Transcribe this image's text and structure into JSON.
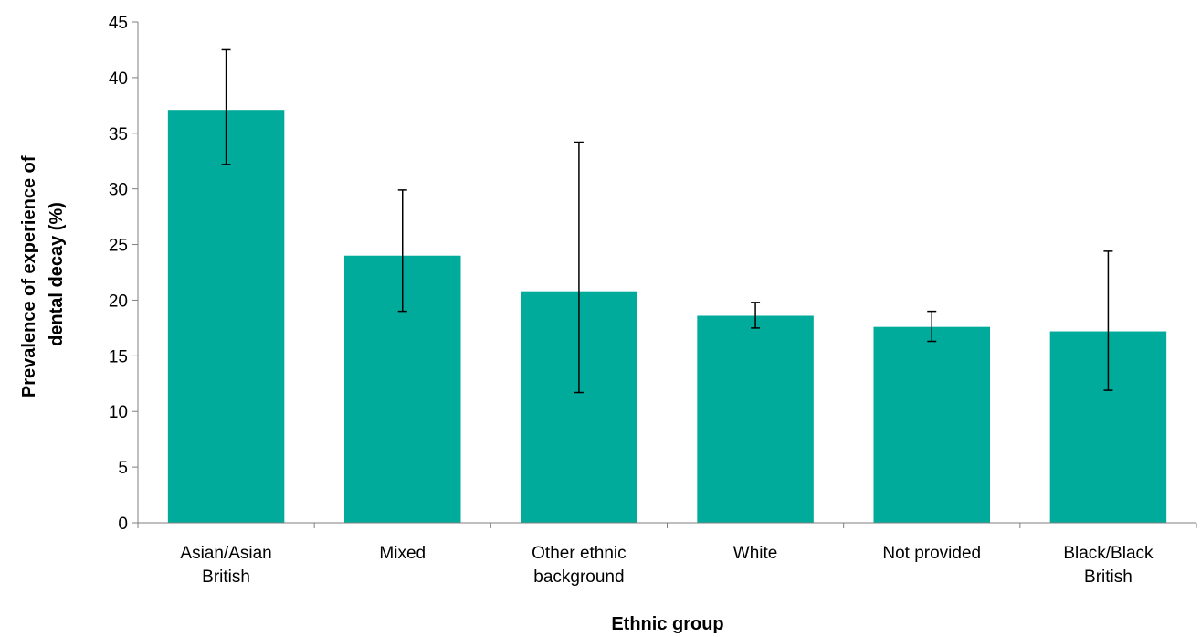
{
  "chart_data": {
    "type": "bar",
    "title": "",
    "xlabel": "Ethnic group",
    "ylabel_lines": [
      "Prevalence of experience of",
      "dental decay (%)"
    ],
    "categories": [
      [
        "Asian/Asian",
        "British"
      ],
      [
        "Mixed"
      ],
      [
        "Other ethnic",
        "background"
      ],
      [
        "White"
      ],
      [
        "Not provided"
      ],
      [
        "Black/Black",
        "British"
      ]
    ],
    "values": [
      37.1,
      24.0,
      20.8,
      18.6,
      17.6,
      17.2
    ],
    "error_low": [
      32.2,
      19.0,
      11.7,
      17.5,
      16.3,
      11.9
    ],
    "error_high": [
      42.5,
      29.9,
      34.2,
      19.8,
      19.0,
      24.4
    ],
    "ylim": [
      0,
      45
    ],
    "yticks": [
      0,
      5,
      10,
      15,
      20,
      25,
      30,
      35,
      40,
      45
    ],
    "grid": false,
    "legend": "none",
    "bar_color": "#00ab9b"
  }
}
